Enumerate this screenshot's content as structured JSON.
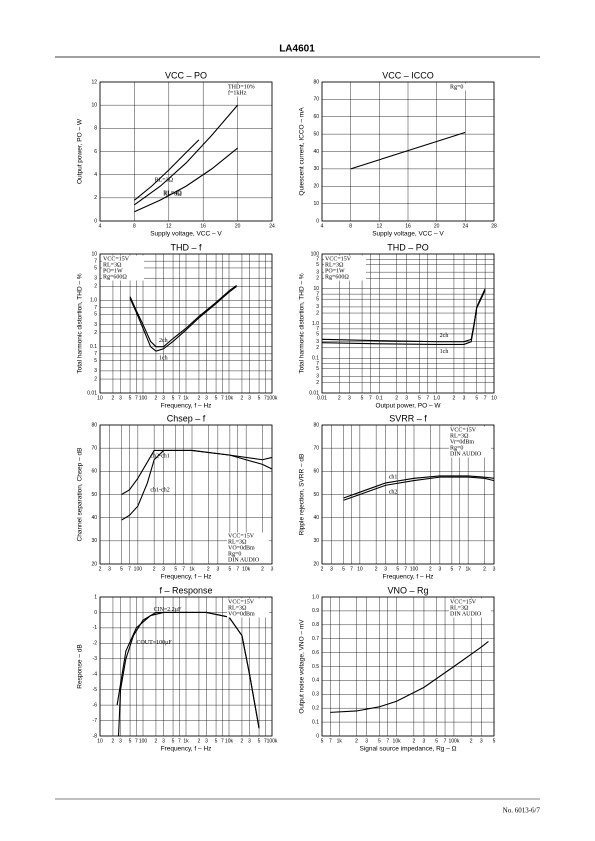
{
  "header": {
    "title": "LA4601"
  },
  "footer": {
    "text": "No. 6013-6/7"
  },
  "chart_data": [
    {
      "type": "line",
      "title": "VCC – PO",
      "x_label": "Supply voltage, VCC – V",
      "y_label": "Output power, PO – W",
      "xlim": [
        4,
        24
      ],
      "ylim": [
        0,
        12
      ],
      "xticks": [
        4,
        8,
        12,
        16,
        20,
        24
      ],
      "yticks": [
        0,
        2,
        4,
        6,
        8,
        10,
        12
      ],
      "xlog": false,
      "ylog": false,
      "grid": true,
      "annotations": [
        "THD=10%",
        "f=1kHz"
      ],
      "series": [
        {
          "name": "RL=3Ω",
          "color": "#000000",
          "x": [
            8,
            10,
            12,
            14,
            15.5
          ],
          "values": [
            1.8,
            3,
            4.4,
            5.9,
            7
          ]
        },
        {
          "name": "RL=4Ω",
          "color": "#000000",
          "x": [
            8,
            11,
            14,
            17,
            20
          ],
          "values": [
            1.4,
            3,
            5,
            7.4,
            10
          ]
        },
        {
          "name": "RL=8Ω",
          "color": "#000000",
          "x": [
            8,
            11,
            14,
            17,
            20
          ],
          "values": [
            0.8,
            1.8,
            3,
            4.5,
            6.3
          ]
        }
      ]
    },
    {
      "type": "line",
      "title": "VCC – ICCO",
      "x_label": "Supply voltage, VCC – V",
      "y_label": "Quiescent current, ICCO – mA",
      "xlim": [
        4,
        28
      ],
      "ylim": [
        0,
        80
      ],
      "xticks": [
        4,
        8,
        12,
        16,
        20,
        24,
        28
      ],
      "yticks": [
        0,
        10,
        20,
        30,
        40,
        50,
        60,
        70,
        80
      ],
      "xlog": false,
      "ylog": false,
      "grid": true,
      "annotations": [
        "Rg=0"
      ],
      "series": [
        {
          "name": null,
          "color": "#000000",
          "x": [
            8,
            24
          ],
          "values": [
            30,
            51
          ]
        }
      ]
    },
    {
      "type": "line",
      "title": "THD – f",
      "x_label": "Frequency, f – Hz",
      "y_label": "Total harmonic distortion, THD – %",
      "xlim": [
        10,
        100000
      ],
      "ylim": [
        0.01,
        10
      ],
      "xlog": true,
      "ylog": true,
      "grid": true,
      "xticks": [
        10,
        {
          "value": 20,
          "label": "2"
        },
        {
          "value": 30,
          "label": "3"
        },
        {
          "value": 50,
          "label": "5"
        },
        {
          "value": 70,
          "label": "7"
        },
        100,
        {
          "value": 200,
          "label": "2"
        },
        {
          "value": 300,
          "label": "3"
        },
        {
          "value": 500,
          "label": "5"
        },
        {
          "value": 700,
          "label": "7"
        },
        {
          "value": 1000,
          "label": "1k"
        },
        {
          "value": 2000,
          "label": "2"
        },
        {
          "value": 3000,
          "label": "3"
        },
        {
          "value": 5000,
          "label": "5"
        },
        {
          "value": 7000,
          "label": "7"
        },
        {
          "value": 10000,
          "label": "10k"
        },
        {
          "value": 20000,
          "label": "2"
        },
        {
          "value": 30000,
          "label": "3"
        },
        {
          "value": 50000,
          "label": "5"
        },
        {
          "value": 70000,
          "label": "7"
        },
        {
          "value": 100000,
          "label": "100k"
        }
      ],
      "yticks": [
        0.01,
        {
          "value": 0.02,
          "label": "2"
        },
        {
          "value": 0.03,
          "label": "3"
        },
        {
          "value": 0.05,
          "label": "5"
        },
        {
          "value": 0.07,
          "label": "7"
        },
        0.1,
        {
          "value": 0.2,
          "label": "2"
        },
        {
          "value": 0.3,
          "label": "3"
        },
        {
          "value": 0.5,
          "label": "5"
        },
        {
          "value": 0.7,
          "label": "7"
        },
        {
          "value": 1,
          "label": "1.0"
        },
        2,
        3,
        5,
        7,
        10
      ],
      "annotations": [
        "VCC=15V",
        "RL=3Ω",
        "PO=1W",
        "Rg=600Ω"
      ],
      "series": [
        {
          "name": "2ch",
          "color": "#000000",
          "x": [
            50,
            70,
            100,
            150,
            200,
            300,
            500,
            1000,
            2000,
            5000,
            10000,
            15000
          ],
          "values": [
            1.2,
            0.6,
            0.3,
            0.13,
            0.1,
            0.1,
            0.15,
            0.25,
            0.45,
            0.9,
            1.6,
            2.1
          ]
        },
        {
          "name": "1ch",
          "color": "#000000",
          "x": [
            50,
            70,
            100,
            150,
            200,
            300,
            500,
            1000,
            2000,
            5000,
            10000,
            15000
          ],
          "values": [
            1.1,
            0.55,
            0.25,
            0.1,
            0.08,
            0.09,
            0.13,
            0.23,
            0.42,
            0.85,
            1.5,
            2
          ]
        }
      ]
    },
    {
      "type": "line",
      "title": "THD – PO",
      "x_label": "Output power, PO – W",
      "y_label": "Total harmonic distortion, THD – %",
      "xlim": [
        0.01,
        10
      ],
      "ylim": [
        0.01,
        100
      ],
      "xlog": true,
      "ylog": true,
      "grid": true,
      "xticks": [
        0.01,
        {
          "value": 0.02,
          "label": "2"
        },
        {
          "value": 0.03,
          "label": "3"
        },
        {
          "value": 0.05,
          "label": "5"
        },
        {
          "value": 0.07,
          "label": "7"
        },
        0.1,
        {
          "value": 0.2,
          "label": "2"
        },
        {
          "value": 0.3,
          "label": "3"
        },
        {
          "value": 0.5,
          "label": "5"
        },
        {
          "value": 0.7,
          "label": "7"
        },
        {
          "value": 1,
          "label": "1.0"
        },
        2,
        3,
        5,
        7,
        10
      ],
      "yticks": [
        0.01,
        {
          "value": 0.02,
          "label": "2"
        },
        {
          "value": 0.03,
          "label": "3"
        },
        {
          "value": 0.05,
          "label": "5"
        },
        {
          "value": 0.07,
          "label": "7"
        },
        0.1,
        {
          "value": 0.2,
          "label": "2"
        },
        {
          "value": 0.3,
          "label": "3"
        },
        {
          "value": 0.5,
          "label": "5"
        },
        {
          "value": 0.7,
          "label": "7"
        },
        {
          "value": 1,
          "label": "1.0"
        },
        2,
        3,
        5,
        7,
        10,
        {
          "value": 20,
          "label": "2"
        },
        {
          "value": 30,
          "label": "3"
        },
        {
          "value": 50,
          "label": "5"
        },
        {
          "value": 70,
          "label": "7"
        },
        100
      ],
      "annotations": [
        "VCC=15V",
        "RL=3Ω",
        "PO=1W",
        "Rg=600Ω"
      ],
      "series": [
        {
          "name": "2ch",
          "color": "#000000",
          "x": [
            0.01,
            0.1,
            1,
            3,
            4,
            4.5,
            5,
            7
          ],
          "values": [
            0.35,
            0.32,
            0.3,
            0.3,
            0.35,
            1,
            3,
            10
          ]
        },
        {
          "name": "1ch",
          "color": "#000000",
          "x": [
            0.01,
            0.1,
            1,
            3,
            4,
            4.5,
            5,
            7
          ],
          "values": [
            0.28,
            0.26,
            0.25,
            0.25,
            0.3,
            0.9,
            2.8,
            9
          ]
        }
      ]
    },
    {
      "type": "line",
      "title": "Chsep – f",
      "x_label": "Frequency, f – Hz",
      "y_label": "Channel separation, Chsep – dB",
      "xlim": [
        20,
        30000
      ],
      "ylim": [
        20,
        80
      ],
      "xlog": true,
      "ylog": false,
      "grid": true,
      "xticks": [
        {
          "value": 20,
          "label": "2"
        },
        {
          "value": 30,
          "label": "3"
        },
        {
          "value": 50,
          "label": "5"
        },
        {
          "value": 70,
          "label": "7"
        },
        100,
        {
          "value": 200,
          "label": "2"
        },
        {
          "value": 300,
          "label": "3"
        },
        {
          "value": 500,
          "label": "5"
        },
        {
          "value": 700,
          "label": "7"
        },
        {
          "value": 1000,
          "label": "1k"
        },
        {
          "value": 2000,
          "label": "2"
        },
        {
          "value": 3000,
          "label": "3"
        },
        {
          "value": 5000,
          "label": "5"
        },
        {
          "value": 7000,
          "label": "7"
        },
        {
          "value": 10000,
          "label": "10k"
        },
        {
          "value": 20000,
          "label": "2"
        },
        {
          "value": 30000,
          "label": "3"
        }
      ],
      "yticks": [
        20,
        30,
        40,
        50,
        60,
        70,
        80
      ],
      "annotations": [
        "VCC=15V",
        "RL=3Ω",
        "VO=0dBm",
        "Rg=0",
        "DIN AUDIO"
      ],
      "series": [
        {
          "name": "ch2-ch1",
          "color": "#000000",
          "x": [
            50,
            70,
            100,
            150,
            200,
            1000,
            5000,
            20000,
            30000
          ],
          "values": [
            50,
            52,
            57,
            64,
            69,
            69,
            67,
            65,
            66
          ]
        },
        {
          "name": "ch1-ch2",
          "color": "#000000",
          "x": [
            50,
            70,
            100,
            150,
            200,
            300,
            1000,
            5000,
            20000,
            30000
          ],
          "values": [
            39,
            41,
            45,
            55,
            65,
            69,
            69,
            67,
            63,
            61
          ]
        }
      ]
    },
    {
      "type": "line",
      "title": "SVRR – f",
      "x_label": "Frequency, f – Hz",
      "y_label": "Ripple rejection, SVRR – dB",
      "xlim": [
        2,
        3000
      ],
      "ylim": [
        20,
        80
      ],
      "xlog": true,
      "ylog": false,
      "grid": true,
      "xticks": [
        2,
        3,
        5,
        7,
        10,
        {
          "value": 20,
          "label": "2"
        },
        {
          "value": 30,
          "label": "3"
        },
        {
          "value": 50,
          "label": "5"
        },
        {
          "value": 70,
          "label": "7"
        },
        100,
        {
          "value": 200,
          "label": "2"
        },
        {
          "value": 300,
          "label": "3"
        },
        {
          "value": 500,
          "label": "5"
        },
        {
          "value": 700,
          "label": "7"
        },
        {
          "value": 1000,
          "label": "1k"
        },
        {
          "value": 2000,
          "label": "2"
        },
        {
          "value": 3000,
          "label": "3"
        }
      ],
      "yticks": [
        20,
        30,
        40,
        50,
        60,
        70,
        80
      ],
      "annotations": [
        "VCC=15V",
        "RL=3Ω",
        "Vr=0dBm",
        "Rg=0",
        "DIN AUDIO"
      ],
      "series": [
        {
          "name": "ch1",
          "color": "#000000",
          "x": [
            5,
            10,
            30,
            100,
            300,
            1000,
            2000,
            3000
          ],
          "values": [
            48.5,
            51,
            55,
            57,
            58,
            58,
            57.5,
            57
          ]
        },
        {
          "name": "ch2",
          "color": "#000000",
          "x": [
            5,
            10,
            30,
            100,
            300,
            1000,
            2000,
            3000
          ],
          "values": [
            47.5,
            50,
            54,
            56,
            57.5,
            57.5,
            57,
            56
          ]
        }
      ]
    },
    {
      "type": "line",
      "title": "f – Response",
      "x_label": "Frequency, f – Hz",
      "y_label": "Response – dB",
      "xlim": [
        10,
        100000
      ],
      "ylim": [
        -8,
        1
      ],
      "xlog": true,
      "ylog": false,
      "grid": true,
      "xticks": [
        10,
        {
          "value": 20,
          "label": "2"
        },
        {
          "value": 30,
          "label": "3"
        },
        {
          "value": 50,
          "label": "5"
        },
        {
          "value": 70,
          "label": "7"
        },
        100,
        {
          "value": 200,
          "label": "2"
        },
        {
          "value": 300,
          "label": "3"
        },
        {
          "value": 500,
          "label": "5"
        },
        {
          "value": 700,
          "label": "7"
        },
        {
          "value": 1000,
          "label": "1k"
        },
        {
          "value": 2000,
          "label": "2"
        },
        {
          "value": 3000,
          "label": "3"
        },
        {
          "value": 5000,
          "label": "5"
        },
        {
          "value": 7000,
          "label": "7"
        },
        {
          "value": 10000,
          "label": "10k"
        },
        {
          "value": 20000,
          "label": "2"
        },
        {
          "value": 30000,
          "label": "3"
        },
        {
          "value": 50000,
          "label": "5"
        },
        {
          "value": 70000,
          "label": "7"
        },
        {
          "value": 100000,
          "label": "100k"
        }
      ],
      "yticks": [
        1,
        0,
        -1,
        -2,
        -3,
        -4,
        -5,
        -6,
        -7,
        -8
      ],
      "annotations": [
        "VCC=15V",
        "RL=3Ω",
        "VO=0dBm"
      ],
      "series": [
        {
          "name": "CIN=2.2μF",
          "color": "#000000",
          "x": [
            25,
            40,
            70,
            150,
            300,
            3000,
            10000,
            20000,
            30000,
            50000
          ],
          "values": [
            -6,
            -2.5,
            -1,
            -0.2,
            0,
            0,
            -0.3,
            -1.5,
            -4,
            -7.5
          ]
        },
        {
          "name": "COUT=100μF",
          "color": "#000000",
          "x": [
            27,
            30,
            40,
            60,
            100,
            200,
            3000,
            10000,
            20000,
            30000,
            50000
          ],
          "values": [
            -8,
            -5,
            -3,
            -1.5,
            -0.5,
            0,
            0,
            -0.3,
            -1.5,
            -4,
            -7.5
          ]
        }
      ]
    },
    {
      "type": "line",
      "title": "VNO – Rg",
      "x_label": "Signal source impedance, Rg – Ω",
      "y_label": "Output noise voltage, VNO – mV",
      "xlim": [
        500,
        500000
      ],
      "ylim": [
        0,
        1
      ],
      "xlog": true,
      "ylog": false,
      "grid": true,
      "xticks": [
        {
          "value": 500,
          "label": "5"
        },
        {
          "value": 700,
          "label": "7"
        },
        {
          "value": 1000,
          "label": "1k"
        },
        {
          "value": 2000,
          "label": "2"
        },
        {
          "value": 3000,
          "label": "3"
        },
        {
          "value": 5000,
          "label": "5"
        },
        {
          "value": 7000,
          "label": "7"
        },
        {
          "value": 10000,
          "label": "10k"
        },
        {
          "value": 20000,
          "label": "2"
        },
        {
          "value": 30000,
          "label": "3"
        },
        {
          "value": 50000,
          "label": "5"
        },
        {
          "value": 70000,
          "label": "7"
        },
        {
          "value": 100000,
          "label": "100k"
        },
        {
          "value": 200000,
          "label": "2"
        },
        {
          "value": 300000,
          "label": "3"
        },
        {
          "value": 500000,
          "label": "5"
        }
      ],
      "yticks": [
        0,
        0.1,
        0.2,
        0.3,
        0.4,
        0.5,
        0.6,
        0.7,
        0.8,
        0.9,
        {
          "value": 1,
          "label": "1.0"
        }
      ],
      "annotations": [
        "VCC=15V",
        "RL=3Ω",
        "DIN AUDIO"
      ],
      "series": [
        {
          "name": null,
          "color": "#000000",
          "x": [
            700,
            2000,
            5000,
            10000,
            30000,
            100000,
            300000,
            400000
          ],
          "values": [
            0.17,
            0.18,
            0.21,
            0.25,
            0.35,
            0.5,
            0.64,
            0.68
          ]
        }
      ]
    }
  ]
}
